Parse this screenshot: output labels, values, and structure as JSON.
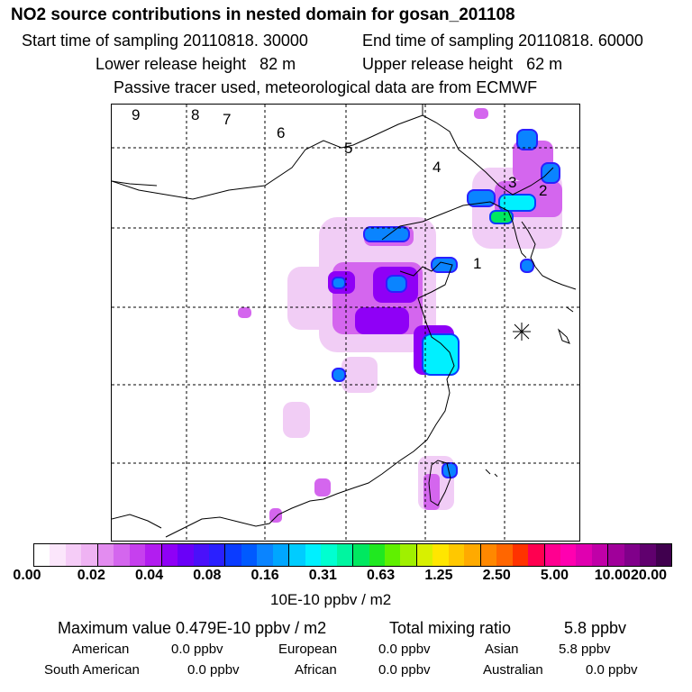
{
  "header": {
    "title": "NO2 source contributions in nested domain for gosan_201108",
    "start": "Start time of sampling 20110818. 30000",
    "end": "End time of sampling 20110818. 60000",
    "lower": "Lower release height   82 m",
    "upper": "Upper release height   62 m",
    "tracer": "Passive tracer used, meteorological data are from ECMWF"
  },
  "map": {
    "region_labels": [
      "9",
      "8",
      "7",
      "6",
      "5",
      "4",
      "3",
      "2",
      "1"
    ],
    "receptor": "gosan"
  },
  "colorbar": {
    "ticks": [
      "0.00",
      "0.02",
      "0.04",
      "0.08",
      "0.16",
      "0.31",
      "0.63",
      "1.25",
      "2.50",
      "5.00",
      "10.00",
      "20.00"
    ],
    "colors": [
      "#ffffff",
      "#fbe6fb",
      "#f5ccf7",
      "#efb3f3",
      "#e38cf0",
      "#d466ee",
      "#c640ee",
      "#b21df0",
      "#8f00f6",
      "#6a00f8",
      "#4a10fa",
      "#2a20ff",
      "#0b3cff",
      "#005aff",
      "#0a84ff",
      "#00a6ff",
      "#00ccff",
      "#00f0ff",
      "#00ffd0",
      "#00f5a0",
      "#00e860",
      "#20e820",
      "#60f000",
      "#a0f000",
      "#d8f000",
      "#ffe600",
      "#ffc800",
      "#ffaa00",
      "#ff8800",
      "#ff6600",
      "#ff3300",
      "#ff0050",
      "#ff0090",
      "#ff00b0",
      "#e000b0",
      "#c000a8",
      "#a0009a",
      "#80008a",
      "#60006e",
      "#40004e"
    ],
    "unit": "10E-10 ppbv / m2"
  },
  "footer": {
    "max_label": "Maximum value  0.479E-10 ppbv / m2",
    "total_label": "Total mixing ratio",
    "total_value": "5.8 ppbv",
    "regions": [
      {
        "name": "American",
        "value": "0.0 ppbv"
      },
      {
        "name": "European",
        "value": "0.0 ppbv"
      },
      {
        "name": "Asian",
        "value": "5.8 ppbv"
      },
      {
        "name": "South American",
        "value": "0.0 ppbv"
      },
      {
        "name": "African",
        "value": "0.0 ppbv"
      },
      {
        "name": "Australian",
        "value": "0.0 ppbv"
      }
    ]
  }
}
